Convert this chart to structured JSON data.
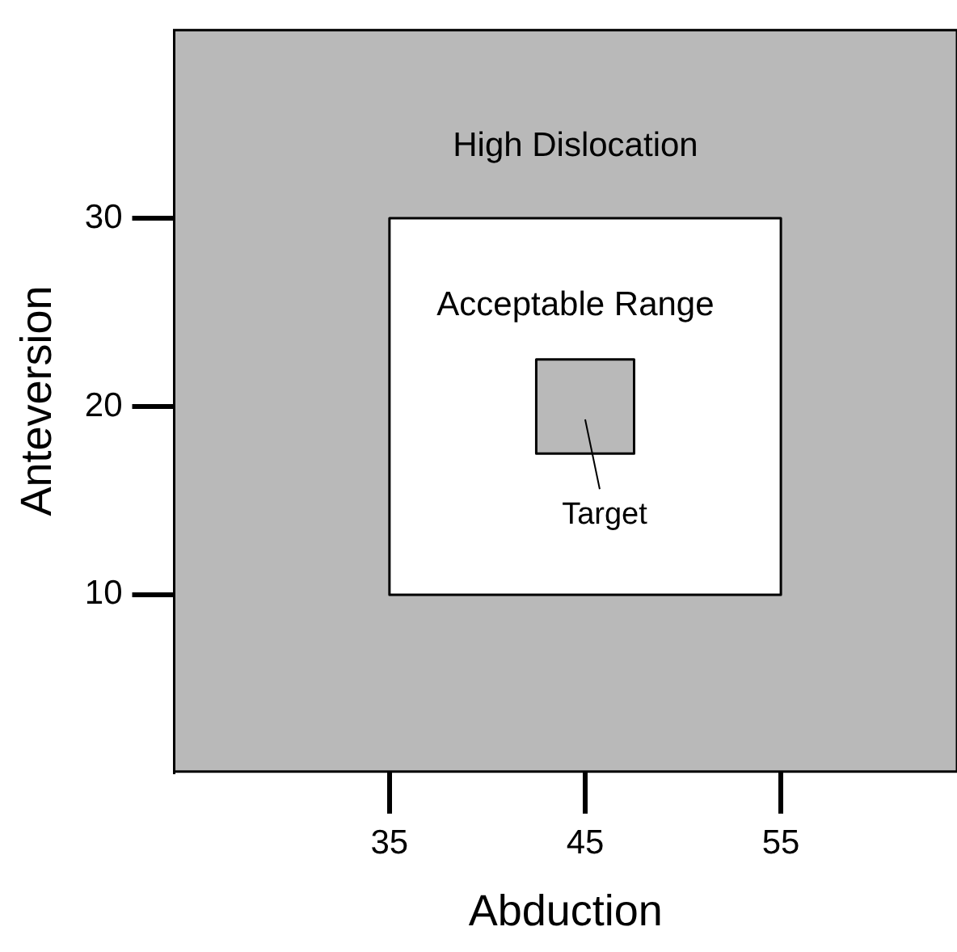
{
  "chart_data": {
    "type": "area",
    "xlabel": "Abduction",
    "ylabel": "Anteversion",
    "xlim": [
      24,
      64
    ],
    "ylim": [
      0.6,
      40
    ],
    "xticks": [
      35,
      45,
      55
    ],
    "yticks": [
      10,
      20,
      30
    ],
    "series": [
      {
        "color": "#ffffff",
        "x": [
          35,
          55,
          55,
          35,
          35
        ],
        "values": [
          10,
          10,
          30,
          30,
          10
        ]
      },
      {
        "name": "Target",
        "color": "#b9b9b9",
        "x": [
          42.5,
          47.5,
          47.5,
          42.5,
          42.5
        ],
        "values": [
          17.5,
          17.5,
          22.5,
          22.5,
          17.5
        ]
      }
    ],
    "annotations": [
      "High Dislocation",
      "Acceptable Range"
    ],
    "grid": false
  }
}
